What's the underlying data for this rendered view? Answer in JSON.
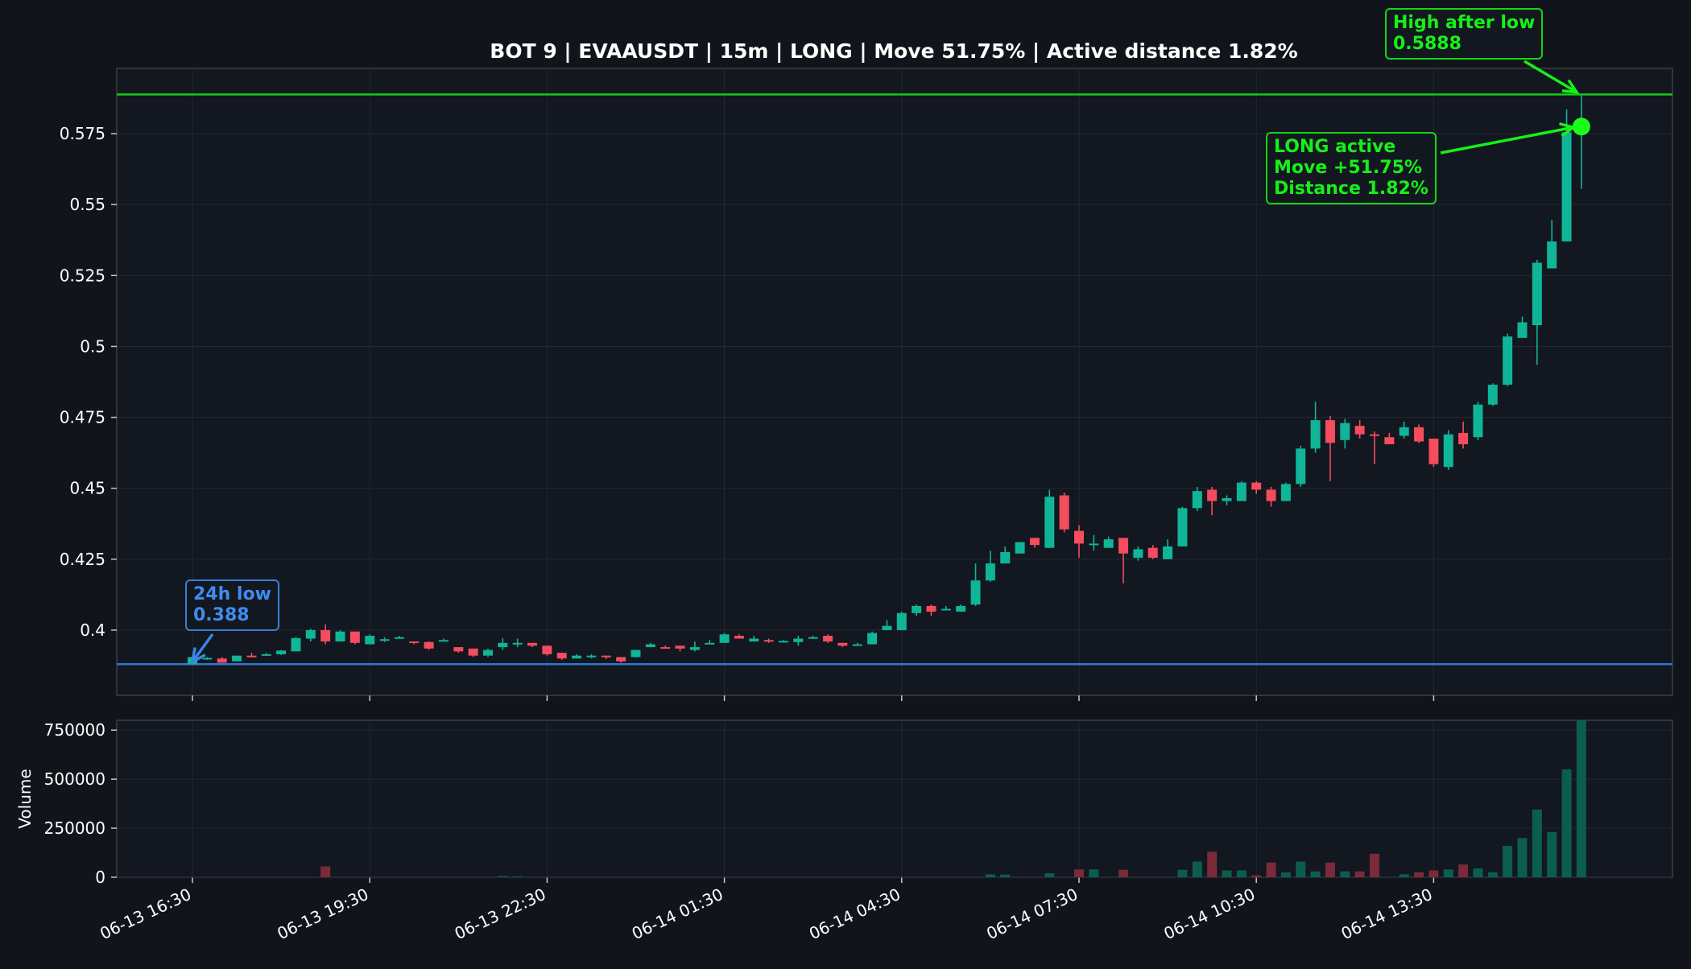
{
  "chart_data": [
    {
      "type": "candlestick",
      "title": "BOT 9 | EVAAUSDT | 15m | LONG | Move 51.75% | Active distance 1.82%",
      "xlabel": "",
      "ylabel": "",
      "ylim": [
        0.377,
        0.598
      ],
      "yticks": [
        "0.4",
        "0.425",
        "0.45",
        "0.475",
        "0.5",
        "0.525",
        "0.55",
        "0.575"
      ],
      "xticks": [
        "06-13 16:30",
        "06-13 19:30",
        "06-13 22:30",
        "06-14 01:30",
        "06-14 04:30",
        "06-14 07:30",
        "06-14 10:30",
        "06-14 13:30"
      ],
      "x_start": "06-13 16:30",
      "interval": "15m",
      "grid": true,
      "up_color": "#10b597",
      "down_color": "#f54c5e",
      "candles": [
        {
          "o": 0.388,
          "h": 0.3905,
          "l": 0.388,
          "c": 0.3905
        },
        {
          "o": 0.39,
          "h": 0.3905,
          "l": 0.3895,
          "c": 0.3902
        },
        {
          "o": 0.39,
          "h": 0.3905,
          "l": 0.3885,
          "c": 0.3885
        },
        {
          "o": 0.389,
          "h": 0.391,
          "l": 0.389,
          "c": 0.391
        },
        {
          "o": 0.391,
          "h": 0.392,
          "l": 0.3905,
          "c": 0.3908
        },
        {
          "o": 0.391,
          "h": 0.392,
          "l": 0.391,
          "c": 0.3915
        },
        {
          "o": 0.3915,
          "h": 0.393,
          "l": 0.3912,
          "c": 0.3928
        },
        {
          "o": 0.3925,
          "h": 0.3975,
          "l": 0.3925,
          "c": 0.3972
        },
        {
          "o": 0.397,
          "h": 0.4005,
          "l": 0.396,
          "c": 0.4
        },
        {
          "o": 0.4,
          "h": 0.402,
          "l": 0.395,
          "c": 0.396
        },
        {
          "o": 0.396,
          "h": 0.4,
          "l": 0.396,
          "c": 0.3995
        },
        {
          "o": 0.3995,
          "h": 0.3995,
          "l": 0.395,
          "c": 0.3955
        },
        {
          "o": 0.395,
          "h": 0.3985,
          "l": 0.395,
          "c": 0.398
        },
        {
          "o": 0.3965,
          "h": 0.3975,
          "l": 0.3958,
          "c": 0.3968
        },
        {
          "o": 0.3975,
          "h": 0.398,
          "l": 0.397,
          "c": 0.3975
        },
        {
          "o": 0.396,
          "h": 0.396,
          "l": 0.395,
          "c": 0.3955
        },
        {
          "o": 0.3958,
          "h": 0.396,
          "l": 0.393,
          "c": 0.3935
        },
        {
          "o": 0.396,
          "h": 0.397,
          "l": 0.396,
          "c": 0.3965
        },
        {
          "o": 0.394,
          "h": 0.394,
          "l": 0.392,
          "c": 0.3925
        },
        {
          "o": 0.3935,
          "h": 0.3935,
          "l": 0.3905,
          "c": 0.391
        },
        {
          "o": 0.391,
          "h": 0.3935,
          "l": 0.3905,
          "c": 0.393
        },
        {
          "o": 0.394,
          "h": 0.3972,
          "l": 0.393,
          "c": 0.3955
        },
        {
          "o": 0.395,
          "h": 0.397,
          "l": 0.394,
          "c": 0.3955
        },
        {
          "o": 0.3955,
          "h": 0.3955,
          "l": 0.394,
          "c": 0.3945
        },
        {
          "o": 0.3945,
          "h": 0.3945,
          "l": 0.391,
          "c": 0.3915
        },
        {
          "o": 0.392,
          "h": 0.392,
          "l": 0.3895,
          "c": 0.39
        },
        {
          "o": 0.39,
          "h": 0.3915,
          "l": 0.39,
          "c": 0.391
        },
        {
          "o": 0.3905,
          "h": 0.3915,
          "l": 0.39,
          "c": 0.391
        },
        {
          "o": 0.391,
          "h": 0.391,
          "l": 0.3898,
          "c": 0.3905
        },
        {
          "o": 0.3905,
          "h": 0.3905,
          "l": 0.3885,
          "c": 0.389
        },
        {
          "o": 0.3905,
          "h": 0.393,
          "l": 0.3903,
          "c": 0.393
        },
        {
          "o": 0.394,
          "h": 0.3955,
          "l": 0.394,
          "c": 0.395
        },
        {
          "o": 0.394,
          "h": 0.3945,
          "l": 0.3935,
          "c": 0.3938
        },
        {
          "o": 0.3945,
          "h": 0.3945,
          "l": 0.3925,
          "c": 0.3935
        },
        {
          "o": 0.393,
          "h": 0.396,
          "l": 0.3925,
          "c": 0.394
        },
        {
          "o": 0.395,
          "h": 0.3965,
          "l": 0.395,
          "c": 0.3955
        },
        {
          "o": 0.3955,
          "h": 0.399,
          "l": 0.3955,
          "c": 0.3985
        },
        {
          "o": 0.398,
          "h": 0.3985,
          "l": 0.397,
          "c": 0.397
        },
        {
          "o": 0.396,
          "h": 0.398,
          "l": 0.396,
          "c": 0.397
        },
        {
          "o": 0.3965,
          "h": 0.397,
          "l": 0.3955,
          "c": 0.396
        },
        {
          "o": 0.396,
          "h": 0.3965,
          "l": 0.3958,
          "c": 0.3962
        },
        {
          "o": 0.3958,
          "h": 0.398,
          "l": 0.3945,
          "c": 0.397
        },
        {
          "o": 0.3975,
          "h": 0.398,
          "l": 0.397,
          "c": 0.3975
        },
        {
          "o": 0.398,
          "h": 0.3985,
          "l": 0.3955,
          "c": 0.396
        },
        {
          "o": 0.3955,
          "h": 0.3955,
          "l": 0.394,
          "c": 0.3945
        },
        {
          "o": 0.3945,
          "h": 0.3955,
          "l": 0.3945,
          "c": 0.395
        },
        {
          "o": 0.395,
          "h": 0.3995,
          "l": 0.395,
          "c": 0.399
        },
        {
          "o": 0.4,
          "h": 0.4035,
          "l": 0.4,
          "c": 0.4015
        },
        {
          "o": 0.4,
          "h": 0.4065,
          "l": 0.4,
          "c": 0.406
        },
        {
          "o": 0.406,
          "h": 0.409,
          "l": 0.405,
          "c": 0.4085
        },
        {
          "o": 0.4085,
          "h": 0.409,
          "l": 0.405,
          "c": 0.4065
        },
        {
          "o": 0.407,
          "h": 0.4085,
          "l": 0.407,
          "c": 0.4075
        },
        {
          "o": 0.4065,
          "h": 0.409,
          "l": 0.4065,
          "c": 0.4085
        },
        {
          "o": 0.409,
          "h": 0.4235,
          "l": 0.4085,
          "c": 0.4175
        },
        {
          "o": 0.4175,
          "h": 0.428,
          "l": 0.417,
          "c": 0.4235
        },
        {
          "o": 0.4235,
          "h": 0.4295,
          "l": 0.4235,
          "c": 0.4275
        },
        {
          "o": 0.427,
          "h": 0.431,
          "l": 0.427,
          "c": 0.431
        },
        {
          "o": 0.4325,
          "h": 0.4325,
          "l": 0.429,
          "c": 0.43
        },
        {
          "o": 0.429,
          "h": 0.4495,
          "l": 0.429,
          "c": 0.447
        },
        {
          "o": 0.4475,
          "h": 0.4485,
          "l": 0.4345,
          "c": 0.4355
        },
        {
          "o": 0.435,
          "h": 0.437,
          "l": 0.4255,
          "c": 0.4305
        },
        {
          "o": 0.43,
          "h": 0.4335,
          "l": 0.428,
          "c": 0.4305
        },
        {
          "o": 0.429,
          "h": 0.433,
          "l": 0.429,
          "c": 0.432
        },
        {
          "o": 0.4325,
          "h": 0.4325,
          "l": 0.4165,
          "c": 0.427
        },
        {
          "o": 0.4255,
          "h": 0.4295,
          "l": 0.4245,
          "c": 0.4285
        },
        {
          "o": 0.429,
          "h": 0.43,
          "l": 0.425,
          "c": 0.4255
        },
        {
          "o": 0.425,
          "h": 0.432,
          "l": 0.425,
          "c": 0.4295
        },
        {
          "o": 0.4295,
          "h": 0.4435,
          "l": 0.4295,
          "c": 0.443
        },
        {
          "o": 0.443,
          "h": 0.4505,
          "l": 0.442,
          "c": 0.449
        },
        {
          "o": 0.4495,
          "h": 0.4505,
          "l": 0.4405,
          "c": 0.4455
        },
        {
          "o": 0.4455,
          "h": 0.4475,
          "l": 0.444,
          "c": 0.4465
        },
        {
          "o": 0.4455,
          "h": 0.4525,
          "l": 0.4455,
          "c": 0.452
        },
        {
          "o": 0.452,
          "h": 0.4525,
          "l": 0.448,
          "c": 0.4495
        },
        {
          "o": 0.4495,
          "h": 0.4505,
          "l": 0.4435,
          "c": 0.4455
        },
        {
          "o": 0.4455,
          "h": 0.452,
          "l": 0.4455,
          "c": 0.4515
        },
        {
          "o": 0.4515,
          "h": 0.465,
          "l": 0.4505,
          "c": 0.464
        },
        {
          "o": 0.464,
          "h": 0.4805,
          "l": 0.4625,
          "c": 0.474
        },
        {
          "o": 0.474,
          "h": 0.4755,
          "l": 0.4525,
          "c": 0.466
        },
        {
          "o": 0.467,
          "h": 0.4745,
          "l": 0.464,
          "c": 0.473
        },
        {
          "o": 0.472,
          "h": 0.474,
          "l": 0.4675,
          "c": 0.469
        },
        {
          "o": 0.469,
          "h": 0.47,
          "l": 0.4585,
          "c": 0.4685
        },
        {
          "o": 0.468,
          "h": 0.4695,
          "l": 0.4655,
          "c": 0.4655
        },
        {
          "o": 0.4685,
          "h": 0.4735,
          "l": 0.4675,
          "c": 0.4715
        },
        {
          "o": 0.4715,
          "h": 0.4725,
          "l": 0.466,
          "c": 0.4665
        },
        {
          "o": 0.4675,
          "h": 0.4675,
          "l": 0.4575,
          "c": 0.4585
        },
        {
          "o": 0.4575,
          "h": 0.4705,
          "l": 0.4565,
          "c": 0.469
        },
        {
          "o": 0.4695,
          "h": 0.4735,
          "l": 0.464,
          "c": 0.4655
        },
        {
          "o": 0.468,
          "h": 0.4805,
          "l": 0.467,
          "c": 0.4795
        },
        {
          "o": 0.4795,
          "h": 0.487,
          "l": 0.479,
          "c": 0.4865
        },
        {
          "o": 0.4865,
          "h": 0.5045,
          "l": 0.486,
          "c": 0.5035
        },
        {
          "o": 0.503,
          "h": 0.5105,
          "l": 0.503,
          "c": 0.5085
        },
        {
          "o": 0.5075,
          "h": 0.5305,
          "l": 0.4935,
          "c": 0.5295
        },
        {
          "o": 0.5275,
          "h": 0.5445,
          "l": 0.5275,
          "c": 0.537
        },
        {
          "o": 0.537,
          "h": 0.5835,
          "l": 0.537,
          "c": 0.5755
        },
        {
          "o": 0.5775,
          "h": 0.5888,
          "l": 0.5555,
          "c": 0.5775
        }
      ]
    },
    {
      "type": "bar",
      "ylabel": "Volume",
      "ylim": [
        0,
        800000
      ],
      "yticks": [
        "0",
        "250000",
        "500000",
        "750000"
      ],
      "up_color": "#0b5e4f",
      "down_color": "#7a2a38",
      "values": [
        0,
        0,
        0,
        0,
        0,
        0,
        0,
        0,
        0,
        55000,
        0,
        0,
        0,
        0,
        0,
        0,
        0,
        0,
        0,
        0,
        0,
        6000,
        5000,
        0,
        0,
        0,
        0,
        0,
        0,
        0,
        0,
        0,
        0,
        0,
        0,
        0,
        0,
        0,
        0,
        0,
        0,
        0,
        0,
        0,
        0,
        0,
        0,
        0,
        0,
        0,
        0,
        0,
        0,
        0,
        15000,
        14000,
        0,
        0,
        20000,
        0,
        40000,
        40000,
        0,
        38000,
        0,
        0,
        0,
        38000,
        80000,
        130000,
        35000,
        35000,
        10000,
        75000,
        25000,
        80000,
        30000,
        75000,
        30000,
        30000,
        120000,
        0,
        15000,
        25000,
        35000,
        40000,
        65000,
        45000,
        25000,
        160000,
        200000,
        345000,
        230000,
        550000,
        800000
      ]
    }
  ],
  "annotations": {
    "low": {
      "label": "24h low",
      "value": "0.388",
      "level": 0.388,
      "color": "#3a86e8"
    },
    "active": {
      "line1": "LONG active",
      "line2": "Move +51.75%",
      "line3": "Distance 1.82%",
      "price": 0.5775,
      "color": "#17f017"
    },
    "high": {
      "label": "High after low",
      "value": "0.5888",
      "level": 0.5888,
      "color": "#17f017"
    }
  }
}
